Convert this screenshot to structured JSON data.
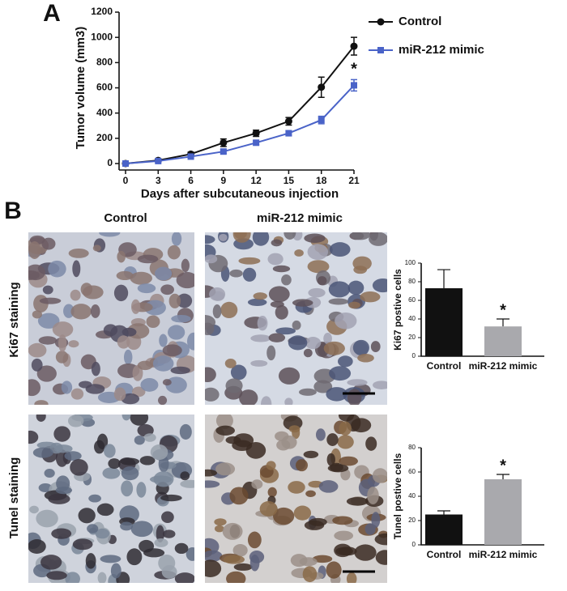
{
  "panel_labels": [
    "A",
    "B"
  ],
  "chart_data": [
    {
      "type": "line",
      "xlabel": "Days after subcutaneous injection",
      "ylabel": "Tumor volume (mm3)",
      "x": [
        0,
        3,
        6,
        9,
        12,
        15,
        18,
        21
      ],
      "xlim": [
        0,
        21
      ],
      "xticks": [
        0,
        3,
        6,
        9,
        12,
        15,
        18,
        21
      ],
      "ylim": [
        0,
        1200
      ],
      "yticks": [
        0,
        200,
        400,
        600,
        800,
        1000,
        1200
      ],
      "series": [
        {
          "name": "Control",
          "color": "#111111",
          "marker": "circle",
          "values": [
            0,
            25,
            75,
            165,
            240,
            335,
            605,
            930
          ],
          "errors": [
            5,
            10,
            15,
            30,
            25,
            30,
            80,
            70
          ]
        },
        {
          "name": "miR-212 mimic",
          "color": "#4a63c8",
          "marker": "square",
          "values": [
            0,
            20,
            55,
            95,
            165,
            240,
            345,
            620
          ],
          "errors": [
            5,
            8,
            10,
            15,
            15,
            20,
            30,
            45
          ]
        }
      ],
      "annotation": "*"
    },
    {
      "type": "bar",
      "ylabel": "Ki67 postive cells",
      "categories": [
        "Control",
        "miR-212 mimic"
      ],
      "values": [
        73,
        32
      ],
      "errors": [
        20,
        8
      ],
      "colors": [
        "#111111",
        "#a9a9ad"
      ],
      "ylim": [
        0,
        100
      ],
      "yticks": [
        0,
        20,
        40,
        60,
        80,
        100
      ],
      "annotation": "*"
    },
    {
      "type": "bar",
      "ylabel": "Tunel postive cells",
      "categories": [
        "Control",
        "miR-212 mimic"
      ],
      "values": [
        25,
        54
      ],
      "errors": [
        3,
        4
      ],
      "colors": [
        "#111111",
        "#a9a9ad"
      ],
      "ylim": [
        0,
        80
      ],
      "yticks": [
        0,
        20,
        40,
        60,
        80
      ],
      "annotation": "*"
    }
  ],
  "images": {
    "columns": [
      "Control",
      "miR-212 mimic"
    ],
    "rows": [
      "Ki67 staining",
      "Tunel staining"
    ]
  }
}
